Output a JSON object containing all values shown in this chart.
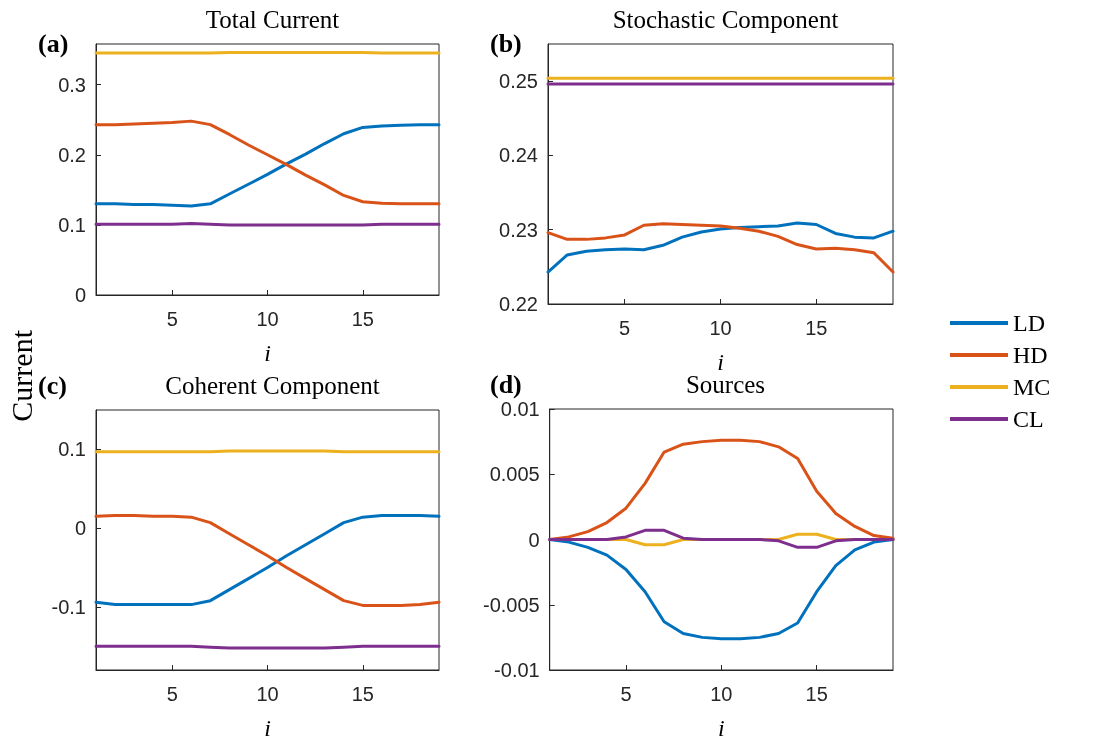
{
  "chart_data": [
    {
      "type": "line",
      "title": "Total Current",
      "xlabel": "i",
      "annotations": [
        "(a)"
      ],
      "x": [
        1,
        2,
        3,
        4,
        5,
        6,
        7,
        8,
        9,
        10,
        11,
        12,
        13,
        14,
        15,
        16,
        17,
        18,
        19
      ],
      "xlim": [
        1,
        19
      ],
      "xticks": [
        5,
        10,
        15
      ],
      "ylim": [
        0,
        0.358
      ],
      "yticks": [
        0,
        0.1,
        0.2,
        0.3
      ],
      "grid": false,
      "legend": false,
      "series": [
        {
          "color": "#0072bd",
          "values": [
            0.13,
            0.13,
            0.129,
            0.129,
            0.128,
            0.127,
            0.13,
            0.144,
            0.158,
            0.172,
            0.187,
            0.201,
            0.216,
            0.23,
            0.239,
            0.241,
            0.242,
            0.243,
            0.243
          ]
        },
        {
          "color": "#d95319",
          "values": [
            0.243,
            0.243,
            0.244,
            0.245,
            0.246,
            0.248,
            0.243,
            0.229,
            0.214,
            0.2,
            0.186,
            0.171,
            0.157,
            0.142,
            0.133,
            0.131,
            0.13,
            0.13,
            0.13
          ]
        },
        {
          "color": "#edb120",
          "values": [
            0.345,
            0.345,
            0.345,
            0.345,
            0.345,
            0.345,
            0.345,
            0.346,
            0.346,
            0.346,
            0.346,
            0.346,
            0.346,
            0.346,
            0.346,
            0.345,
            0.345,
            0.345,
            0.345
          ]
        },
        {
          "color": "#7e2f8e",
          "values": [
            0.101,
            0.101,
            0.101,
            0.101,
            0.101,
            0.102,
            0.101,
            0.1,
            0.1,
            0.1,
            0.1,
            0.1,
            0.1,
            0.1,
            0.1,
            0.101,
            0.101,
            0.101,
            0.101
          ]
        }
      ]
    },
    {
      "type": "line",
      "title": "Stochastic Component",
      "xlabel": "i",
      "annotations": [
        "(b)"
      ],
      "x": [
        1,
        2,
        3,
        4,
        5,
        6,
        7,
        8,
        9,
        10,
        11,
        12,
        13,
        14,
        15,
        16,
        17,
        18,
        19
      ],
      "xlim": [
        1,
        19
      ],
      "xticks": [
        5,
        10,
        15
      ],
      "ylim": [
        0.22,
        0.255
      ],
      "yticks": [
        0.22,
        0.23,
        0.24,
        0.25
      ],
      "grid": false,
      "legend": "right",
      "series": [
        {
          "name": "LD",
          "color": "#0072bd",
          "values": [
            0.2243,
            0.2266,
            0.2271,
            0.2273,
            0.2274,
            0.2273,
            0.2279,
            0.229,
            0.2297,
            0.2301,
            0.2303,
            0.2304,
            0.2305,
            0.2309,
            0.2307,
            0.2295,
            0.229,
            0.2289,
            0.2298
          ]
        },
        {
          "name": "HD",
          "color": "#d95319",
          "values": [
            0.2296,
            0.2287,
            0.2287,
            0.2289,
            0.2293,
            0.2306,
            0.2308,
            0.2307,
            0.2306,
            0.2305,
            0.2302,
            0.2298,
            0.2291,
            0.228,
            0.2274,
            0.2275,
            0.2273,
            0.2269,
            0.2243
          ]
        },
        {
          "name": "MC",
          "color": "#edb120",
          "values": [
            0.2504,
            0.2504,
            0.2504,
            0.2504,
            0.2504,
            0.2504,
            0.2504,
            0.2504,
            0.2504,
            0.2504,
            0.2504,
            0.2504,
            0.2504,
            0.2504,
            0.2504,
            0.2504,
            0.2504,
            0.2504,
            0.2504
          ]
        },
        {
          "name": "CL",
          "color": "#7e2f8e",
          "values": [
            0.2496,
            0.2496,
            0.2496,
            0.2496,
            0.2496,
            0.2496,
            0.2496,
            0.2496,
            0.2496,
            0.2496,
            0.2496,
            0.2496,
            0.2496,
            0.2496,
            0.2496,
            0.2496,
            0.2496,
            0.2496,
            0.2496
          ]
        }
      ]
    },
    {
      "type": "line",
      "title": "Coherent Component",
      "xlabel": "i",
      "ylabel": "Current",
      "annotations": [
        "(c)"
      ],
      "x": [
        1,
        2,
        3,
        4,
        5,
        6,
        7,
        8,
        9,
        10,
        11,
        12,
        13,
        14,
        15,
        16,
        17,
        18,
        19
      ],
      "xlim": [
        1,
        19
      ],
      "xticks": [
        5,
        10,
        15
      ],
      "ylim": [
        -0.18,
        0.15
      ],
      "yticks": [
        -0.1,
        0,
        0.1
      ],
      "grid": false,
      "legend": false,
      "series": [
        {
          "color": "#0072bd",
          "values": [
            -0.094,
            -0.097,
            -0.097,
            -0.097,
            -0.097,
            -0.097,
            -0.092,
            -0.078,
            -0.064,
            -0.05,
            -0.035,
            -0.021,
            -0.007,
            0.007,
            0.014,
            0.016,
            0.016,
            0.016,
            0.015
          ]
        },
        {
          "color": "#d95319",
          "values": [
            0.015,
            0.016,
            0.016,
            0.015,
            0.015,
            0.014,
            0.007,
            -0.007,
            -0.021,
            -0.035,
            -0.05,
            -0.064,
            -0.078,
            -0.092,
            -0.098,
            -0.098,
            -0.098,
            -0.097,
            -0.094
          ]
        },
        {
          "color": "#edb120",
          "values": [
            0.097,
            0.097,
            0.097,
            0.097,
            0.097,
            0.097,
            0.097,
            0.098,
            0.098,
            0.098,
            0.098,
            0.098,
            0.098,
            0.097,
            0.097,
            0.097,
            0.097,
            0.097,
            0.097
          ]
        },
        {
          "color": "#7e2f8e",
          "values": [
            -0.15,
            -0.15,
            -0.15,
            -0.15,
            -0.15,
            -0.15,
            -0.151,
            -0.152,
            -0.152,
            -0.152,
            -0.152,
            -0.152,
            -0.152,
            -0.151,
            -0.15,
            -0.15,
            -0.15,
            -0.15,
            -0.15
          ]
        }
      ]
    },
    {
      "type": "line",
      "title": "Sources",
      "xlabel": "i",
      "annotations": [
        "(d)"
      ],
      "x": [
        1,
        2,
        3,
        4,
        5,
        6,
        7,
        8,
        9,
        10,
        11,
        12,
        13,
        14,
        15,
        16,
        17,
        18,
        19
      ],
      "xlim": [
        1,
        19
      ],
      "xticks": [
        5,
        10,
        15
      ],
      "ylim": [
        -0.01,
        0.01
      ],
      "yticks": [
        -0.01,
        -0.005,
        0,
        0.005,
        0.01
      ],
      "grid": false,
      "legend": false,
      "series": [
        {
          "color": "#0072bd",
          "values": [
            0,
            -0.0002,
            -0.0006,
            -0.0012,
            -0.0023,
            -0.004,
            -0.0063,
            -0.0072,
            -0.0075,
            -0.0076,
            -0.0076,
            -0.0075,
            -0.0072,
            -0.0064,
            -0.004,
            -0.002,
            -0.0008,
            -0.0002,
            0
          ]
        },
        {
          "color": "#d95319",
          "values": [
            0,
            0.0002,
            0.0006,
            0.0013,
            0.0024,
            0.0043,
            0.0067,
            0.0073,
            0.0075,
            0.0076,
            0.0076,
            0.0075,
            0.0071,
            0.0062,
            0.0037,
            0.002,
            0.001,
            0.0003,
            0.0001
          ]
        },
        {
          "color": "#edb120",
          "values": [
            null,
            null,
            0,
            0,
            0,
            -0.0004,
            -0.0004,
            0,
            0,
            0,
            0,
            0,
            0,
            0.0004,
            0.0004,
            0,
            0,
            0,
            0
          ]
        },
        {
          "color": "#7e2f8e",
          "values": [
            0,
            0,
            0,
            0,
            0.0002,
            0.0007,
            0.0007,
            0.0001,
            0,
            0,
            0,
            0,
            -0.0001,
            -0.0006,
            -0.0006,
            -0.0001,
            0,
            0,
            0
          ]
        }
      ]
    }
  ]
}
